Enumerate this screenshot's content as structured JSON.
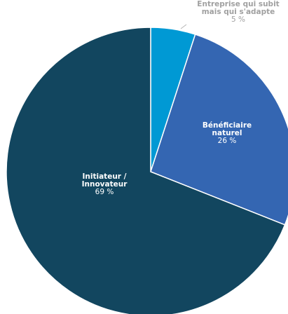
{
  "chart_data": {
    "type": "pie",
    "title": "",
    "slices": [
      {
        "name_lines": [
          "Entreprise qui subit",
          "mais qui s'adapte"
        ],
        "value": 5,
        "value_label": "5 %",
        "color": "#0099d4",
        "label_color": "#a0a0a0"
      },
      {
        "name_lines": [
          "Bénéficiaire",
          "naturel"
        ],
        "value": 26,
        "value_label": "26 %",
        "color": "#3466b2",
        "label_color": "#ffffff"
      },
      {
        "name_lines": [
          "Initiateur /",
          "Innovateur"
        ],
        "value": 69,
        "value_label": "69 %",
        "color": "#12465f",
        "label_color": "#ffffff"
      }
    ],
    "start": "12 o'clock",
    "direction": "clockwise",
    "legend": "none",
    "labels": "data labels on slices; small slice labelled outside with leader line"
  }
}
